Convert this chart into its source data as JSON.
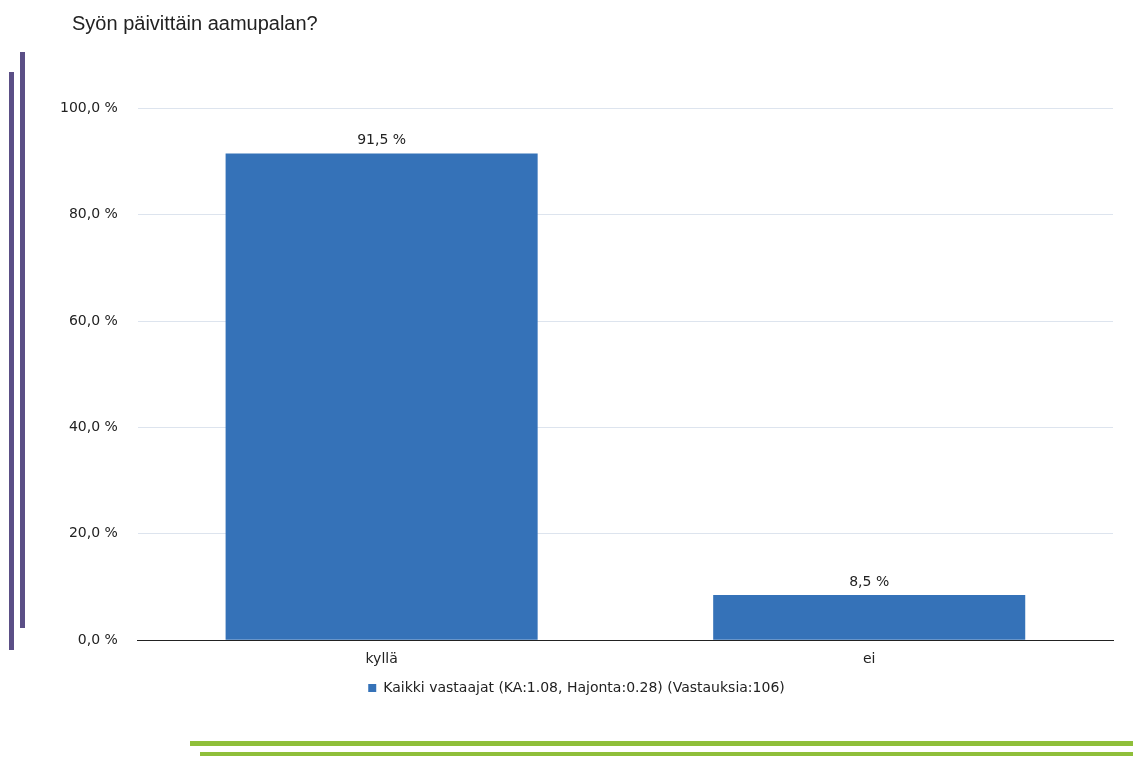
{
  "chart_data": {
    "type": "bar",
    "title": "Syön päivittäin aamupalan?",
    "categories": [
      "kyllä",
      "ei"
    ],
    "series": [
      {
        "name": "Kaikki vastaajat (KA:1.08, Hajonta:0.28) (Vastauksia:106)",
        "color": "#3572b8",
        "values": [
          91.5,
          8.5
        ],
        "value_labels": [
          "91,5 %",
          "8,5 %"
        ]
      }
    ],
    "ylim": [
      0,
      100
    ],
    "yticks": [
      {
        "value": 0,
        "label": "0,0 %"
      },
      {
        "value": 20,
        "label": "20,0 %"
      },
      {
        "value": 40,
        "label": "40,0 %"
      },
      {
        "value": 60,
        "label": "60,0 %"
      },
      {
        "value": 80,
        "label": "80,0 %"
      },
      {
        "value": 100,
        "label": "100,0 %"
      }
    ],
    "grid": "y",
    "legend": "bottom"
  }
}
